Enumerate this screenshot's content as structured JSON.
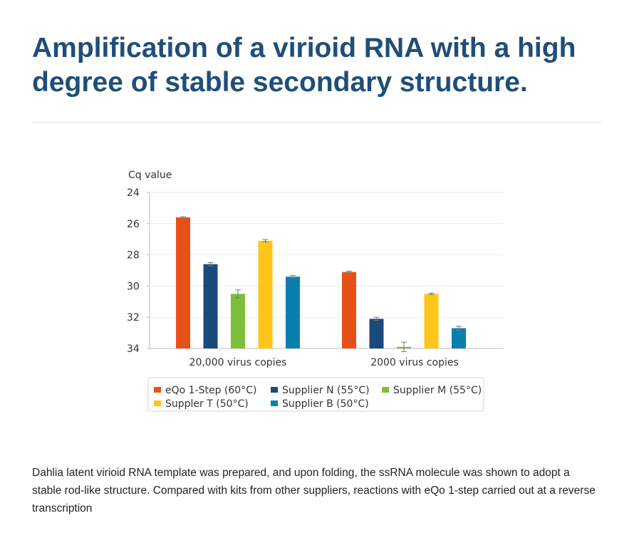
{
  "page": {
    "title": "Amplification of a virioid RNA with a high degree of stable secondary structure.",
    "caption": "Dahlia latent virioid RNA template was prepared, and upon folding, the ssRNA molecule was shown to adopt a stable rod-like structure. Compared with kits from other suppliers, reactions with eQo 1-step carried out at a reverse transcription"
  },
  "chart_data": {
    "type": "bar",
    "ylabel": "Cq value",
    "xlabel": "",
    "ylim": [
      24,
      34
    ],
    "y_inverted": true,
    "y_ticks": [
      "24",
      "26",
      "28",
      "30",
      "32",
      "34"
    ],
    "grid": true,
    "legend_position": "bottom",
    "categories": [
      "20,000 virus copies",
      "2000 virus copies"
    ],
    "series": [
      {
        "name": "eQo 1-Step (60°C)",
        "color": "#e8501a",
        "values": [
          25.6,
          29.1
        ],
        "errors": [
          0.05,
          0.05
        ]
      },
      {
        "name": "Supplier N (55°C)",
        "color": "#1a4a7a",
        "values": [
          28.6,
          32.1
        ],
        "errors": [
          0.1,
          0.1
        ]
      },
      {
        "name": "Supplier M (55°C)",
        "color": "#7bbf3a",
        "values": [
          30.5,
          33.9
        ],
        "errors": [
          0.25,
          0.3
        ]
      },
      {
        "name": "Suppler T (50°C)",
        "color": "#ffc61a",
        "values": [
          27.1,
          30.5
        ],
        "errors": [
          0.08,
          0.05
        ]
      },
      {
        "name": "Supplier B (50°C)",
        "color": "#0a7fae",
        "values": [
          29.4,
          32.7
        ],
        "errors": [
          0.08,
          0.12
        ]
      }
    ]
  }
}
